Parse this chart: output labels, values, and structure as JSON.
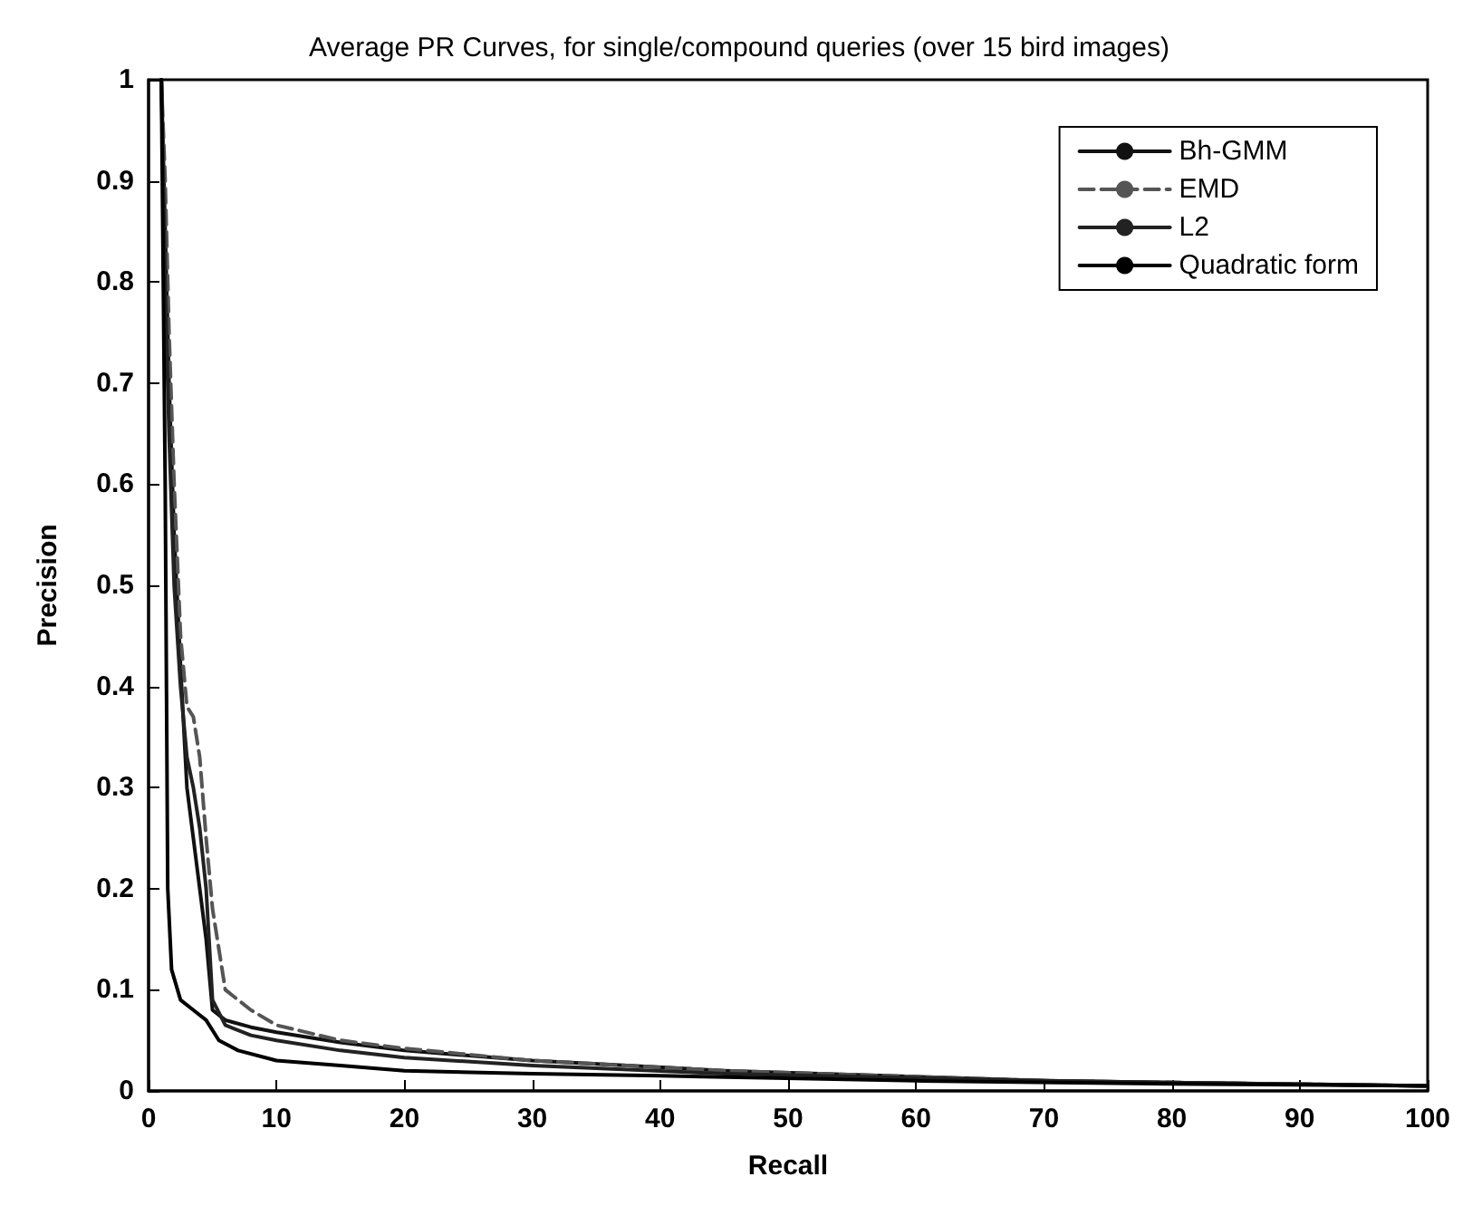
{
  "chart_data": {
    "type": "line",
    "title": "Average PR Curves, for single/compound queries (over 15 bird images)",
    "xlabel": "Recall",
    "ylabel": "Precision",
    "xlim": [
      0,
      100
    ],
    "xticks": [
      0,
      10,
      20,
      30,
      40,
      50,
      60,
      70,
      80,
      90,
      100
    ],
    "ylim": [
      0,
      1
    ],
    "yticks": [
      0,
      0.1,
      0.2,
      0.3,
      0.4,
      0.5,
      0.6,
      0.7,
      0.8,
      0.9,
      1
    ],
    "grid": false,
    "legend": "top right",
    "marker": "none",
    "series": [
      {
        "name": "Bh-GMM",
        "color": "#111111",
        "line_style": "solid",
        "x": [
          1,
          1.3,
          1.6,
          2,
          2.5,
          3,
          3.5,
          4,
          4.5,
          5,
          6,
          8,
          10,
          15,
          20,
          30,
          45,
          70,
          100
        ],
        "values": [
          1,
          0.85,
          0.7,
          0.55,
          0.42,
          0.3,
          0.25,
          0.2,
          0.15,
          0.08,
          0.07,
          0.063,
          0.058,
          0.048,
          0.04,
          0.03,
          0.02,
          0.01,
          0.005
        ]
      },
      {
        "name": "EMD",
        "color": "#555555",
        "line_style": "dashed",
        "x": [
          1,
          1.3,
          1.6,
          2,
          2.5,
          3,
          3.5,
          4,
          4.5,
          5,
          6,
          7,
          8,
          10,
          15,
          20,
          30,
          45,
          70,
          100
        ],
        "values": [
          1,
          0.9,
          0.75,
          0.6,
          0.45,
          0.38,
          0.37,
          0.33,
          0.25,
          0.18,
          0.1,
          0.09,
          0.08,
          0.065,
          0.05,
          0.042,
          0.03,
          0.02,
          0.01,
          0.005
        ]
      },
      {
        "name": "L2",
        "color": "#222222",
        "line_style": "solid",
        "x": [
          1,
          1.3,
          1.6,
          2,
          2.5,
          3,
          3.5,
          4,
          4.5,
          5,
          6,
          8,
          10,
          15,
          20,
          30,
          45,
          70,
          100
        ],
        "values": [
          1,
          0.8,
          0.65,
          0.5,
          0.4,
          0.33,
          0.3,
          0.26,
          0.2,
          0.09,
          0.065,
          0.055,
          0.05,
          0.04,
          0.033,
          0.025,
          0.017,
          0.01,
          0.005
        ]
      },
      {
        "name": "Quadratic form",
        "color": "#000000",
        "line_style": "solid",
        "x": [
          1,
          1.3,
          1.5,
          1.8,
          2.5,
          3.5,
          4.5,
          5.5,
          7,
          10,
          15,
          20,
          30,
          40,
          60,
          80,
          100
        ],
        "values": [
          1,
          0.6,
          0.2,
          0.12,
          0.09,
          0.08,
          0.07,
          0.05,
          0.04,
          0.03,
          0.025,
          0.02,
          0.017,
          0.015,
          0.01,
          0.007,
          0.005
        ]
      }
    ]
  }
}
